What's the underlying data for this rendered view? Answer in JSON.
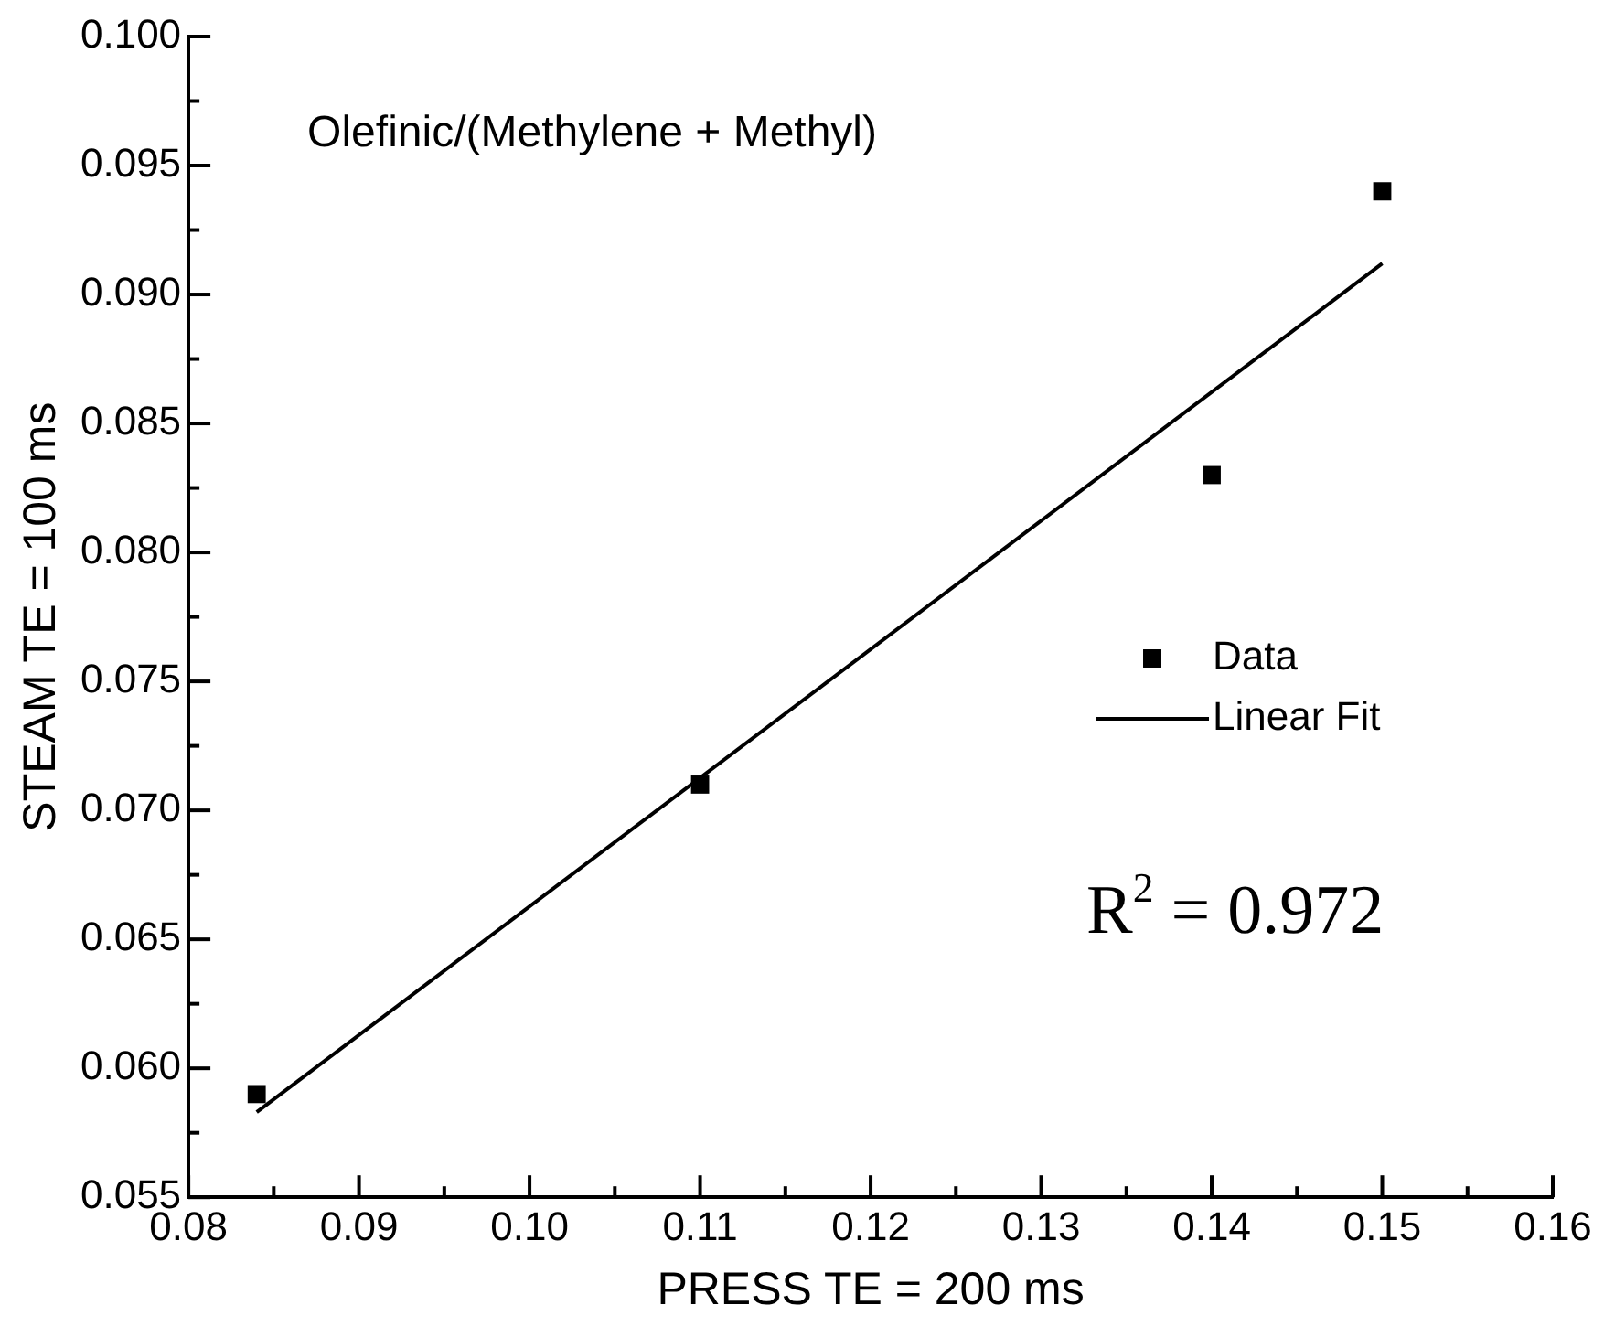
{
  "chart_data": {
    "type": "scatter",
    "title": "Olefinic/(Methylene + Methyl)",
    "xlabel": "PRESS TE = 200 ms",
    "ylabel": "STEAM TE = 100 ms",
    "series": [
      {
        "name": "Data",
        "type": "scatter",
        "marker": "square",
        "color": "#000000",
        "x": [
          0.084,
          0.11,
          0.14,
          0.15
        ],
        "values": [
          0.059,
          0.071,
          0.083,
          0.094
        ]
      },
      {
        "name": "Linear Fit",
        "type": "line",
        "marker": "none",
        "color": "#000000",
        "x": [
          0.084,
          0.15
        ],
        "values": [
          0.0583,
          0.0912
        ]
      }
    ],
    "xlim": [
      0.08,
      0.16
    ],
    "xticks": [
      {
        "value": 0.08,
        "label": "0.08"
      },
      {
        "value": 0.09,
        "label": "0.09"
      },
      {
        "value": 0.1,
        "label": "0.10"
      },
      {
        "value": 0.11,
        "label": "0.11"
      },
      {
        "value": 0.12,
        "label": "0.12"
      },
      {
        "value": 0.13,
        "label": "0.13"
      },
      {
        "value": 0.14,
        "label": "0.14"
      },
      {
        "value": 0.15,
        "label": "0.15"
      },
      {
        "value": 0.16,
        "label": "0.16"
      }
    ],
    "ylim": [
      0.055,
      0.1
    ],
    "yticks": [
      {
        "value": 0.055,
        "label": "0.055"
      },
      {
        "value": 0.06,
        "label": "0.060"
      },
      {
        "value": 0.065,
        "label": "0.065"
      },
      {
        "value": 0.07,
        "label": "0.070"
      },
      {
        "value": 0.075,
        "label": "0.075"
      },
      {
        "value": 0.08,
        "label": "0.080"
      },
      {
        "value": 0.085,
        "label": "0.085"
      },
      {
        "value": 0.09,
        "label": "0.090"
      },
      {
        "value": 0.095,
        "label": "0.095"
      },
      {
        "value": 0.1,
        "label": "0.100"
      }
    ],
    "annotations": [
      "R$^{2}$ = 0.972"
    ],
    "legend": "right",
    "line_style": "solid",
    "grid": false
  }
}
